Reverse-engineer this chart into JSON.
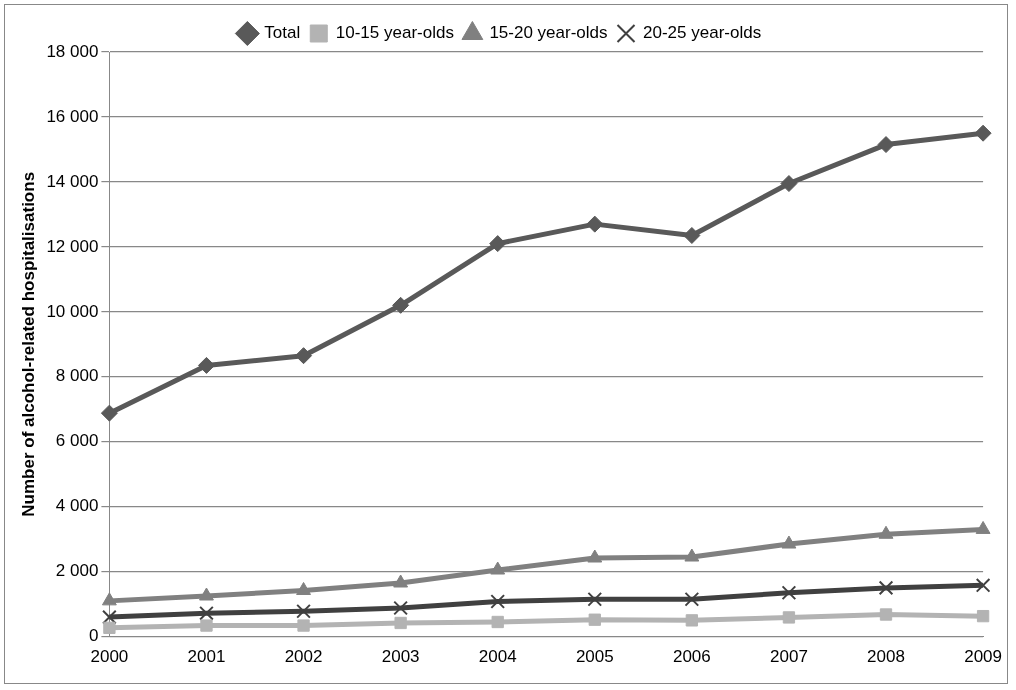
{
  "chart_data": {
    "type": "line",
    "ylabel": "Number of alcohol-related hospitalisations",
    "categories": [
      "2000",
      "2001",
      "2002",
      "2003",
      "2004",
      "2005",
      "2006",
      "2007",
      "2008",
      "2009"
    ],
    "series": [
      {
        "name": "Total",
        "color": "#595959",
        "marker": "diamond",
        "values": [
          6880,
          8350,
          8650,
          10200,
          12100,
          12700,
          12350,
          13950,
          15150,
          15500
        ]
      },
      {
        "name": "10-15 year-olds",
        "color": "#b3b3b3",
        "marker": "square",
        "values": [
          270,
          340,
          340,
          420,
          450,
          520,
          500,
          590,
          680,
          630
        ]
      },
      {
        "name": "15-20 year-olds",
        "color": "#808080",
        "marker": "triangle",
        "values": [
          1100,
          1250,
          1420,
          1650,
          2050,
          2420,
          2450,
          2850,
          3150,
          3300
        ]
      },
      {
        "name": "20-25 year-olds",
        "color": "#404040",
        "marker": "cross",
        "values": [
          600,
          720,
          780,
          880,
          1080,
          1150,
          1150,
          1350,
          1500,
          1580
        ]
      }
    ],
    "ylim": [
      0,
      18000
    ],
    "yticks": [
      0,
      {
        "value": 2000,
        "label": "2 000"
      },
      {
        "value": 4000,
        "label": "4 000"
      },
      {
        "value": 6000,
        "label": "6 000"
      },
      {
        "value": 8000,
        "label": "8 000"
      },
      {
        "value": 10000,
        "label": "10 000"
      },
      {
        "value": 12000,
        "label": "12 000"
      },
      {
        "value": 14000,
        "label": "14 000"
      },
      {
        "value": 16000,
        "label": "16 000"
      },
      {
        "value": 18000,
        "label": "18 000"
      }
    ],
    "grid": "y",
    "legend": "top"
  }
}
